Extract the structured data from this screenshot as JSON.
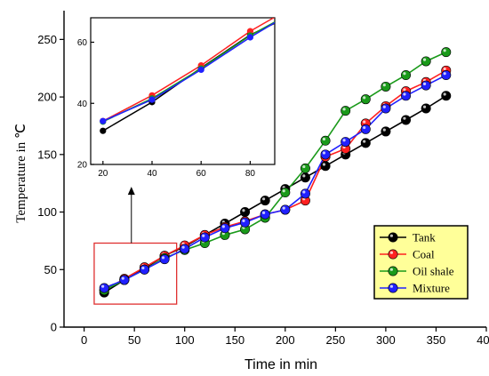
{
  "chart_data": [
    {
      "type": "line",
      "xlabel": "Time in min",
      "ylabel": "Temperature in ℃",
      "xlim": [
        -20,
        400
      ],
      "ylim": [
        0,
        275
      ],
      "xticks": [
        0,
        50,
        100,
        150,
        200,
        250,
        300,
        350,
        400
      ],
      "yticks": [
        0,
        50,
        100,
        150,
        200,
        250
      ],
      "legend_position": "bottom-right",
      "legend_background": "#ffff99",
      "highlight_box": {
        "x": [
          10,
          92
        ],
        "y": [
          20,
          73
        ],
        "color": "#e03030"
      },
      "arrow": {
        "from": [
          47,
          73
        ],
        "to": [
          47,
          122
        ]
      },
      "x": [
        20,
        40,
        60,
        80,
        100,
        120,
        140,
        160,
        180,
        200,
        220,
        240,
        260,
        280,
        300,
        320,
        340,
        360
      ],
      "series": [
        {
          "name": "Tank",
          "color": "#000000",
          "values": [
            30,
            41,
            51,
            62,
            70,
            80,
            90,
            100,
            110,
            120,
            130,
            140,
            150,
            160,
            170,
            180,
            190,
            201
          ]
        },
        {
          "name": "Coal",
          "color": "#ff2020",
          "values": [
            32,
            42,
            52,
            62,
            71,
            80,
            87,
            92,
            98,
            102,
            110,
            148,
            155,
            177,
            192,
            205,
            213,
            223
          ]
        },
        {
          "name": "Oil shale",
          "color": "#1a9a1a",
          "values": [
            32,
            41,
            50,
            60,
            67,
            73,
            80,
            85,
            95,
            117,
            138,
            162,
            188,
            198,
            209,
            219,
            231,
            239
          ]
        },
        {
          "name": "Mixture",
          "color": "#2020ff",
          "values": [
            34,
            41,
            50,
            59,
            68,
            78,
            86,
            91,
            98,
            102,
            116,
            150,
            161,
            172,
            190,
            201,
            210,
            219
          ]
        }
      ]
    },
    {
      "type": "line",
      "role": "inset",
      "xlim": [
        15,
        90
      ],
      "ylim": [
        20,
        68
      ],
      "xticks": [
        20,
        40,
        60,
        80
      ],
      "yticks": [
        20,
        40,
        60
      ],
      "x": [
        20,
        40,
        60,
        80,
        90
      ],
      "series": [
        {
          "name": "Tank",
          "color": "#000000",
          "values": [
            31,
            40.4,
            51.6,
            62.4,
            66.2
          ]
        },
        {
          "name": "Coal",
          "color": "#ff2020",
          "values": [
            34.2,
            42.6,
            52.4,
            63.6,
            68.2
          ]
        },
        {
          "name": "Oil shale",
          "color": "#1a9a1a",
          "values": [
            34,
            41.6,
            51.4,
            62.2,
            66.6
          ]
        },
        {
          "name": "Mixture",
          "color": "#2020ff",
          "values": [
            34.2,
            41.2,
            51,
            61.6,
            66.4
          ]
        }
      ]
    }
  ]
}
